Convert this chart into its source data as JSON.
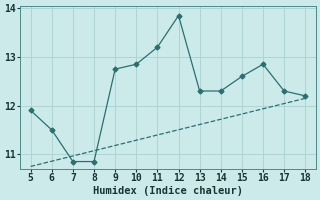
{
  "xlabel": "Humidex (Indice chaleur)",
  "line_x": [
    5,
    6,
    7,
    8,
    9,
    10,
    11,
    12,
    13,
    14,
    15,
    16,
    17,
    18
  ],
  "line_y": [
    11.9,
    11.5,
    10.85,
    10.85,
    12.75,
    12.85,
    13.2,
    13.85,
    12.3,
    12.3,
    12.6,
    12.85,
    12.3,
    12.2
  ],
  "trend_x": [
    5,
    18
  ],
  "trend_y": [
    10.75,
    12.15
  ],
  "line_color": "#2a7070",
  "trend_color": "#2a7070",
  "bg_color": "#cdeaea",
  "grid_color": "#afd4d4",
  "xlim": [
    4.5,
    18.5
  ],
  "ylim": [
    10.7,
    14.05
  ],
  "xticks": [
    5,
    6,
    7,
    8,
    9,
    10,
    11,
    12,
    13,
    14,
    15,
    16,
    17,
    18
  ],
  "yticks": [
    11,
    12,
    13,
    14
  ],
  "tick_fontsize": 7,
  "label_fontsize": 7.5,
  "markersize": 2.5
}
